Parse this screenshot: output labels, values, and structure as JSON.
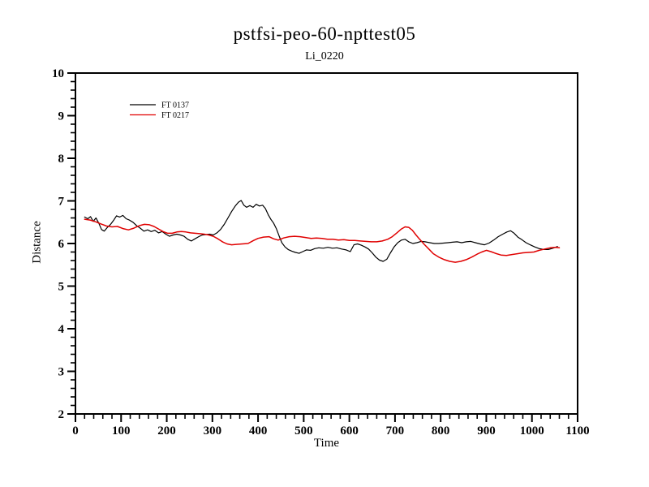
{
  "chart_data": {
    "type": "line",
    "title": "pstfsi-peo-60-npttest05",
    "subtitle": "Li_0220",
    "xlabel": "Time",
    "ylabel": "Distance",
    "xlim": [
      0,
      1100
    ],
    "ylim": [
      2,
      10
    ],
    "x_axis": {
      "major": 100,
      "minor": 20
    },
    "y_axis": {
      "major": 1,
      "minor": 0.2
    },
    "grid": false,
    "legend_position": "upper-left-inside",
    "background": "#ffffff",
    "frame_color": "#000000",
    "series": [
      {
        "name": "FT 0137",
        "color": "#000000",
        "points": [
          [
            20,
            6.62
          ],
          [
            27,
            6.58
          ],
          [
            33,
            6.63
          ],
          [
            39,
            6.52
          ],
          [
            45,
            6.6
          ],
          [
            51,
            6.48
          ],
          [
            57,
            6.33
          ],
          [
            63,
            6.29
          ],
          [
            70,
            6.38
          ],
          [
            77,
            6.45
          ],
          [
            84,
            6.55
          ],
          [
            90,
            6.65
          ],
          [
            97,
            6.62
          ],
          [
            104,
            6.66
          ],
          [
            111,
            6.58
          ],
          [
            118,
            6.55
          ],
          [
            126,
            6.5
          ],
          [
            134,
            6.42
          ],
          [
            142,
            6.36
          ],
          [
            150,
            6.29
          ],
          [
            158,
            6.32
          ],
          [
            166,
            6.28
          ],
          [
            174,
            6.31
          ],
          [
            182,
            6.25
          ],
          [
            190,
            6.28
          ],
          [
            198,
            6.22
          ],
          [
            206,
            6.17
          ],
          [
            214,
            6.2
          ],
          [
            222,
            6.22
          ],
          [
            230,
            6.2
          ],
          [
            238,
            6.17
          ],
          [
            246,
            6.1
          ],
          [
            254,
            6.06
          ],
          [
            262,
            6.11
          ],
          [
            270,
            6.16
          ],
          [
            278,
            6.2
          ],
          [
            286,
            6.21
          ],
          [
            294,
            6.22
          ],
          [
            302,
            6.2
          ],
          [
            310,
            6.25
          ],
          [
            318,
            6.33
          ],
          [
            326,
            6.45
          ],
          [
            334,
            6.6
          ],
          [
            342,
            6.75
          ],
          [
            350,
            6.88
          ],
          [
            357,
            6.97
          ],
          [
            363,
            7.01
          ],
          [
            369,
            6.9
          ],
          [
            375,
            6.85
          ],
          [
            382,
            6.89
          ],
          [
            389,
            6.85
          ],
          [
            396,
            6.92
          ],
          [
            403,
            6.88
          ],
          [
            410,
            6.9
          ],
          [
            416,
            6.82
          ],
          [
            422,
            6.68
          ],
          [
            428,
            6.57
          ],
          [
            434,
            6.48
          ],
          [
            440,
            6.35
          ],
          [
            446,
            6.18
          ],
          [
            452,
            6.02
          ],
          [
            459,
            5.92
          ],
          [
            466,
            5.86
          ],
          [
            474,
            5.82
          ],
          [
            482,
            5.79
          ],
          [
            490,
            5.77
          ],
          [
            498,
            5.81
          ],
          [
            506,
            5.85
          ],
          [
            515,
            5.84
          ],
          [
            524,
            5.88
          ],
          [
            533,
            5.9
          ],
          [
            543,
            5.89
          ],
          [
            553,
            5.91
          ],
          [
            563,
            5.89
          ],
          [
            573,
            5.9
          ],
          [
            583,
            5.87
          ],
          [
            593,
            5.85
          ],
          [
            602,
            5.81
          ],
          [
            610,
            5.97
          ],
          [
            618,
            5.99
          ],
          [
            626,
            5.96
          ],
          [
            634,
            5.92
          ],
          [
            642,
            5.87
          ],
          [
            650,
            5.78
          ],
          [
            658,
            5.68
          ],
          [
            666,
            5.61
          ],
          [
            674,
            5.58
          ],
          [
            682,
            5.63
          ],
          [
            690,
            5.78
          ],
          [
            698,
            5.92
          ],
          [
            706,
            6.02
          ],
          [
            714,
            6.08
          ],
          [
            722,
            6.1
          ],
          [
            730,
            6.04
          ],
          [
            739,
            6.0
          ],
          [
            748,
            6.02
          ],
          [
            757,
            6.05
          ],
          [
            766,
            6.04
          ],
          [
            776,
            6.02
          ],
          [
            786,
            6.0
          ],
          [
            796,
            6.0
          ],
          [
            806,
            6.01
          ],
          [
            816,
            6.02
          ],
          [
            826,
            6.03
          ],
          [
            836,
            6.04
          ],
          [
            846,
            6.02
          ],
          [
            856,
            6.04
          ],
          [
            866,
            6.05
          ],
          [
            876,
            6.02
          ],
          [
            886,
            5.99
          ],
          [
            896,
            5.97
          ],
          [
            906,
            6.01
          ],
          [
            916,
            6.08
          ],
          [
            926,
            6.16
          ],
          [
            936,
            6.22
          ],
          [
            945,
            6.27
          ],
          [
            953,
            6.3
          ],
          [
            961,
            6.24
          ],
          [
            969,
            6.15
          ],
          [
            978,
            6.09
          ],
          [
            987,
            6.02
          ],
          [
            996,
            5.97
          ],
          [
            1006,
            5.92
          ],
          [
            1016,
            5.88
          ],
          [
            1026,
            5.86
          ],
          [
            1036,
            5.86
          ],
          [
            1046,
            5.89
          ],
          [
            1056,
            5.93
          ]
        ]
      },
      {
        "name": "FT 0217",
        "color": "#e00000",
        "points": [
          [
            20,
            6.57
          ],
          [
            32,
            6.55
          ],
          [
            44,
            6.51
          ],
          [
            56,
            6.46
          ],
          [
            68,
            6.41
          ],
          [
            80,
            6.39
          ],
          [
            92,
            6.4
          ],
          [
            104,
            6.35
          ],
          [
            116,
            6.32
          ],
          [
            128,
            6.36
          ],
          [
            140,
            6.42
          ],
          [
            151,
            6.45
          ],
          [
            162,
            6.44
          ],
          [
            172,
            6.4
          ],
          [
            182,
            6.34
          ],
          [
            192,
            6.28
          ],
          [
            202,
            6.24
          ],
          [
            212,
            6.24
          ],
          [
            222,
            6.27
          ],
          [
            232,
            6.28
          ],
          [
            242,
            6.27
          ],
          [
            252,
            6.25
          ],
          [
            262,
            6.24
          ],
          [
            272,
            6.23
          ],
          [
            282,
            6.22
          ],
          [
            292,
            6.2
          ],
          [
            302,
            6.17
          ],
          [
            312,
            6.11
          ],
          [
            322,
            6.04
          ],
          [
            332,
            5.99
          ],
          [
            342,
            5.97
          ],
          [
            354,
            5.98
          ],
          [
            366,
            5.99
          ],
          [
            378,
            6.0
          ],
          [
            390,
            6.07
          ],
          [
            400,
            6.12
          ],
          [
            412,
            6.15
          ],
          [
            424,
            6.16
          ],
          [
            434,
            6.11
          ],
          [
            444,
            6.08
          ],
          [
            456,
            6.13
          ],
          [
            468,
            6.16
          ],
          [
            480,
            6.17
          ],
          [
            492,
            6.16
          ],
          [
            504,
            6.14
          ],
          [
            516,
            6.12
          ],
          [
            528,
            6.13
          ],
          [
            540,
            6.12
          ],
          [
            552,
            6.1
          ],
          [
            564,
            6.1
          ],
          [
            576,
            6.08
          ],
          [
            588,
            6.09
          ],
          [
            600,
            6.07
          ],
          [
            612,
            6.07
          ],
          [
            624,
            6.06
          ],
          [
            636,
            6.05
          ],
          [
            648,
            6.04
          ],
          [
            660,
            6.04
          ],
          [
            672,
            6.06
          ],
          [
            684,
            6.1
          ],
          [
            694,
            6.16
          ],
          [
            704,
            6.25
          ],
          [
            714,
            6.34
          ],
          [
            722,
            6.39
          ],
          [
            730,
            6.38
          ],
          [
            738,
            6.31
          ],
          [
            746,
            6.2
          ],
          [
            754,
            6.1
          ],
          [
            764,
            5.98
          ],
          [
            774,
            5.87
          ],
          [
            784,
            5.76
          ],
          [
            796,
            5.68
          ],
          [
            808,
            5.62
          ],
          [
            820,
            5.58
          ],
          [
            832,
            5.56
          ],
          [
            844,
            5.58
          ],
          [
            856,
            5.62
          ],
          [
            868,
            5.68
          ],
          [
            880,
            5.75
          ],
          [
            890,
            5.8
          ],
          [
            900,
            5.84
          ],
          [
            910,
            5.81
          ],
          [
            920,
            5.77
          ],
          [
            932,
            5.73
          ],
          [
            944,
            5.72
          ],
          [
            956,
            5.74
          ],
          [
            968,
            5.76
          ],
          [
            980,
            5.78
          ],
          [
            992,
            5.79
          ],
          [
            1004,
            5.8
          ],
          [
            1016,
            5.84
          ],
          [
            1028,
            5.87
          ],
          [
            1040,
            5.9
          ],
          [
            1052,
            5.91
          ],
          [
            1060,
            5.9
          ]
        ]
      }
    ]
  }
}
